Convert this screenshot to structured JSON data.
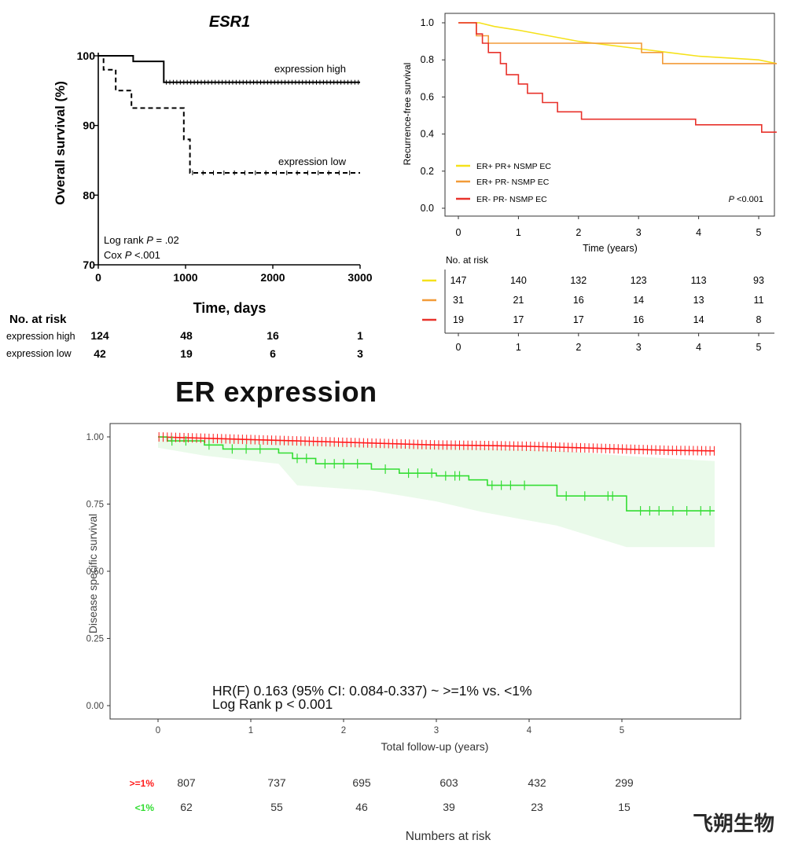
{
  "chart_data": [
    {
      "type": "line",
      "title": "ESR1",
      "xlabel": "Time, days",
      "ylabel": "Overall survival (%)",
      "xlim": [
        0,
        3000
      ],
      "ylim": [
        70,
        100
      ],
      "x_ticks": [
        "0",
        "1000",
        "2000",
        "3000"
      ],
      "y_ticks": [
        "70",
        "80",
        "90",
        "100"
      ],
      "series": [
        {
          "name": "expression high",
          "points": [
            [
              0,
              100
            ],
            [
              400,
              100
            ],
            [
              400,
              99.2
            ],
            [
              750,
              99.2
            ],
            [
              750,
              96.2
            ],
            [
              3000,
              96.2
            ]
          ],
          "color": "#000000",
          "dash": "solid"
        },
        {
          "name": "expression low",
          "points": [
            [
              0,
              100
            ],
            [
              60,
              100
            ],
            [
              60,
              98
            ],
            [
              200,
              98
            ],
            [
              200,
              95
            ],
            [
              380,
              95
            ],
            [
              380,
              92.5
            ],
            [
              980,
              92.5
            ],
            [
              980,
              88
            ],
            [
              1050,
              88
            ],
            [
              1050,
              83.2
            ],
            [
              3000,
              83.2
            ]
          ],
          "color": "#000000",
          "dash": "dashed"
        }
      ],
      "annotations": {
        "stat1_prefix": "Log rank ",
        "stat1_p": "P",
        "stat1_suffix": " = .02",
        "stat2_prefix": "Cox ",
        "stat2_p": "P",
        "stat2_suffix": " <.001"
      },
      "risk_table": {
        "title": "No. at risk",
        "rows": [
          {
            "label": "expression high",
            "values": [
              "124",
              "48",
              "16",
              "1"
            ]
          },
          {
            "label": "expression low",
            "values": [
              "42",
              "19",
              "6",
              "3"
            ]
          }
        ]
      }
    },
    {
      "type": "line",
      "title": "",
      "xlabel": "Time (years)",
      "ylabel": "Recurrence-free survival",
      "xlim": [
        0,
        5.3
      ],
      "ylim": [
        0,
        1.0
      ],
      "x_ticks": [
        "0",
        "1",
        "2",
        "3",
        "4",
        "5"
      ],
      "y_ticks": [
        "0.0",
        "0.2",
        "0.4",
        "0.6",
        "0.8",
        "1.0"
      ],
      "legend_position": "bottom-left",
      "series": [
        {
          "name": "ER+ PR+ NSMP EC",
          "color": "#f5e11a",
          "points": [
            [
              0,
              1
            ],
            [
              0.35,
              1
            ],
            [
              0.6,
              0.98
            ],
            [
              1.0,
              0.96
            ],
            [
              1.5,
              0.93
            ],
            [
              2.0,
              0.9
            ],
            [
              2.5,
              0.88
            ],
            [
              3.0,
              0.86
            ],
            [
              3.5,
              0.84
            ],
            [
              4.0,
              0.82
            ],
            [
              4.5,
              0.81
            ],
            [
              5.0,
              0.8
            ],
            [
              5.3,
              0.78
            ]
          ]
        },
        {
          "name": "ER+ PR- NSMP EC",
          "color": "#f29b38",
          "points": [
            [
              0,
              1
            ],
            [
              0.3,
              1
            ],
            [
              0.3,
              0.93
            ],
            [
              0.5,
              0.93
            ],
            [
              0.5,
              0.89
            ],
            [
              3.05,
              0.89
            ],
            [
              3.05,
              0.84
            ],
            [
              3.4,
              0.84
            ],
            [
              3.4,
              0.78
            ],
            [
              5.3,
              0.78
            ]
          ]
        },
        {
          "name": "ER- PR- NSMP EC",
          "color": "#e8322b",
          "points": [
            [
              0,
              1
            ],
            [
              0.3,
              1
            ],
            [
              0.3,
              0.94
            ],
            [
              0.4,
              0.94
            ],
            [
              0.4,
              0.89
            ],
            [
              0.5,
              0.89
            ],
            [
              0.5,
              0.84
            ],
            [
              0.7,
              0.84
            ],
            [
              0.7,
              0.78
            ],
            [
              0.8,
              0.78
            ],
            [
              0.8,
              0.72
            ],
            [
              1.0,
              0.72
            ],
            [
              1.0,
              0.67
            ],
            [
              1.15,
              0.67
            ],
            [
              1.15,
              0.62
            ],
            [
              1.4,
              0.62
            ],
            [
              1.4,
              0.57
            ],
            [
              1.65,
              0.57
            ],
            [
              1.65,
              0.52
            ],
            [
              2.05,
              0.52
            ],
            [
              2.05,
              0.48
            ],
            [
              3.95,
              0.48
            ],
            [
              3.95,
              0.45
            ],
            [
              5.05,
              0.45
            ],
            [
              5.05,
              0.41
            ],
            [
              5.3,
              0.41
            ]
          ]
        }
      ],
      "annotation_p": "P",
      "annotation_suffix": " <0.001",
      "risk_table": {
        "title": "No. at risk",
        "x_ticks": [
          "0",
          "1",
          "2",
          "3",
          "4",
          "5"
        ],
        "rows": [
          {
            "color": "#f5e11a",
            "values": [
              "147",
              "140",
              "132",
              "123",
              "113",
              "93"
            ]
          },
          {
            "color": "#f29b38",
            "values": [
              "31",
              "21",
              "16",
              "14",
              "13",
              "11"
            ]
          },
          {
            "color": "#e8322b",
            "values": [
              "19",
              "17",
              "17",
              "16",
              "14",
              "8"
            ]
          }
        ]
      }
    },
    {
      "type": "line",
      "title": "ER expression",
      "xlabel": "Total follow-up (years)",
      "ylabel": "Disease specific survival",
      "xlim": [
        0,
        6
      ],
      "ylim": [
        0,
        1.0
      ],
      "x_ticks": [
        "0",
        "1",
        "2",
        "3",
        "4",
        "5"
      ],
      "y_ticks": [
        "0.00",
        "0.25",
        "0.50",
        "0.75",
        "1.00"
      ],
      "series": [
        {
          "name": ">=1%",
          "color": "#ff1a1a",
          "points": [
            [
              0,
              1.0
            ],
            [
              0.5,
              0.995
            ],
            [
              1.0,
              0.99
            ],
            [
              1.5,
              0.985
            ],
            [
              2.0,
              0.98
            ],
            [
              2.5,
              0.975
            ],
            [
              3.0,
              0.97
            ],
            [
              3.5,
              0.968
            ],
            [
              4.0,
              0.965
            ],
            [
              4.5,
              0.96
            ],
            [
              5.0,
              0.955
            ],
            [
              5.5,
              0.95
            ],
            [
              6.0,
              0.948
            ]
          ]
        },
        {
          "name": "<1%",
          "color": "#33dd33",
          "points": [
            [
              0,
              1.0
            ],
            [
              0.1,
              1.0
            ],
            [
              0.1,
              0.985
            ],
            [
              0.5,
              0.985
            ],
            [
              0.5,
              0.97
            ],
            [
              0.7,
              0.97
            ],
            [
              0.7,
              0.955
            ],
            [
              1.3,
              0.955
            ],
            [
              1.3,
              0.94
            ],
            [
              1.45,
              0.94
            ],
            [
              1.45,
              0.92
            ],
            [
              1.7,
              0.92
            ],
            [
              1.7,
              0.9
            ],
            [
              2.3,
              0.9
            ],
            [
              2.3,
              0.88
            ],
            [
              2.6,
              0.88
            ],
            [
              2.6,
              0.865
            ],
            [
              3.0,
              0.865
            ],
            [
              3.0,
              0.855
            ],
            [
              3.35,
              0.855
            ],
            [
              3.35,
              0.84
            ],
            [
              3.55,
              0.84
            ],
            [
              3.55,
              0.82
            ],
            [
              4.3,
              0.82
            ],
            [
              4.3,
              0.78
            ],
            [
              5.05,
              0.78
            ],
            [
              5.05,
              0.725
            ],
            [
              6.0,
              0.725
            ]
          ]
        }
      ],
      "ci_band": {
        "upper": [
          [
            0,
            1.0
          ],
          [
            0.5,
            0.99
          ],
          [
            1.3,
            0.99
          ],
          [
            1.5,
            0.98
          ],
          [
            2.3,
            0.97
          ],
          [
            3.0,
            0.965
          ],
          [
            4.3,
            0.95
          ],
          [
            5.0,
            0.93
          ],
          [
            6.0,
            0.91
          ]
        ],
        "lower": [
          [
            0,
            0.96
          ],
          [
            0.5,
            0.93
          ],
          [
            1.3,
            0.9
          ],
          [
            1.5,
            0.82
          ],
          [
            2.3,
            0.8
          ],
          [
            3.0,
            0.76
          ],
          [
            3.5,
            0.72
          ],
          [
            4.3,
            0.67
          ],
          [
            5.05,
            0.59
          ],
          [
            6.0,
            0.59
          ]
        ]
      },
      "annotation_line1": "HR(F) 0.163 (95% CI: 0.084-0.337) ~ >=1% vs. <1%",
      "annotation_line2": "Log Rank p < 0.001",
      "risk_table": {
        "title": "Numbers at risk",
        "rows": [
          {
            "label": ">=1%",
            "color": "#ff1a1a",
            "values": [
              "807",
              "737",
              "695",
              "603",
              "432",
              "299"
            ]
          },
          {
            "label": "<1%",
            "color": "#33dd33",
            "values": [
              "62",
              "55",
              "46",
              "39",
              "23",
              "15"
            ]
          }
        ]
      }
    }
  ],
  "watermark": "飞朔生物"
}
